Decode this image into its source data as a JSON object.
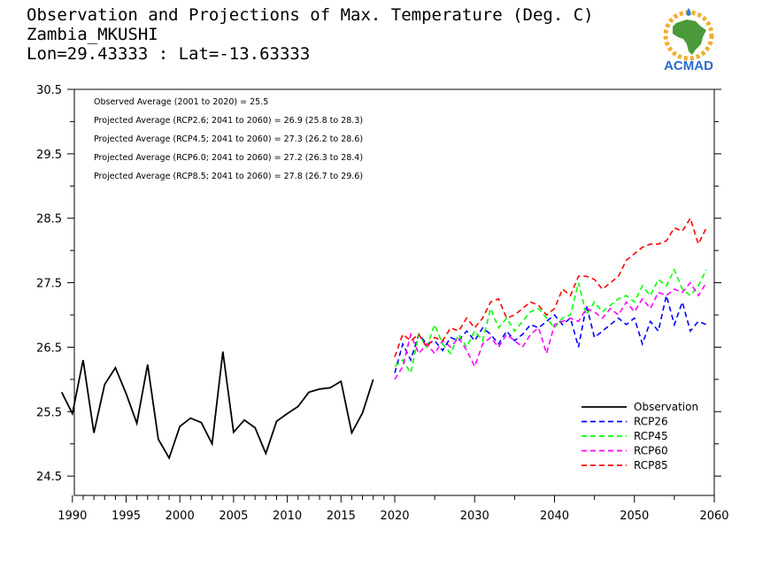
{
  "title": {
    "line1": "Observation and Projections of Max. Temperature (Deg. C)",
    "line2": "Zambia_MKUSHI",
    "line3": "Lon=29.43333 : Lat=-13.63333"
  },
  "logo": {
    "text": "ACMAD",
    "icon": "africa-sun-logo-icon"
  },
  "chart_data": {
    "type": "line",
    "title": "Observation and Projections of Max. Temperature (Deg. C)",
    "xlabel": "",
    "ylabel": "",
    "xlim": [
      1989,
      2060
    ],
    "ylim": [
      24.2,
      30.5
    ],
    "x_ticks": [
      1990,
      1995,
      2000,
      2005,
      2010,
      2015,
      2020,
      2030,
      2040,
      2050,
      2060
    ],
    "y_ticks": [
      24.5,
      25.5,
      26.5,
      27.5,
      28.5,
      29.5,
      30.5
    ],
    "grid": false,
    "legend_position": "bottom-right",
    "annotations": [
      "Observed Average (2001 to 2020) = 25.5",
      "Projected Average (RCP2.6; 2041 to 2060) = 26.9 (25.8 to 28.3)",
      "Projected Average (RCP4.5; 2041 to 2060) = 27.3 (26.2 to 28.6)",
      "Projected Average (RCP6.0; 2041 to 2060) = 27.2 (26.3 to 28.4)",
      "Projected Average (RCP8.5; 2041 to 2060) = 27.8 (26.7 to 29.6)"
    ],
    "series": [
      {
        "name": "Observation",
        "color": "#000000",
        "dash": "solid",
        "x_start": 1989,
        "values": [
          25.8,
          25.47,
          26.3,
          25.17,
          25.92,
          26.18,
          25.78,
          25.32,
          26.23,
          25.07,
          24.78,
          25.27,
          25.4,
          25.33,
          25.0,
          26.43,
          25.18,
          25.37,
          25.25,
          24.85,
          25.35,
          25.47,
          25.58,
          25.8,
          25.85,
          25.87,
          25.97,
          25.17,
          25.48,
          26.0
        ]
      },
      {
        "name": "RCP26",
        "color": "#0000ff",
        "dash": "dashed",
        "x_start": 2020,
        "values": [
          26.1,
          26.55,
          26.3,
          26.7,
          26.55,
          26.6,
          26.45,
          26.65,
          26.6,
          26.75,
          26.6,
          26.8,
          26.7,
          26.55,
          26.75,
          26.6,
          26.7,
          26.85,
          26.8,
          26.9,
          27.0,
          26.85,
          26.95,
          26.5,
          27.15,
          26.65,
          26.75,
          26.85,
          26.95,
          26.85,
          26.95,
          26.55,
          26.9,
          26.75,
          27.3,
          26.85,
          27.2,
          26.75,
          26.9,
          26.85
        ]
      },
      {
        "name": "RCP45",
        "color": "#00ff00",
        "dash": "dashed",
        "x_start": 2020,
        "values": [
          26.2,
          26.3,
          26.1,
          26.7,
          26.5,
          26.85,
          26.55,
          26.4,
          26.7,
          26.5,
          26.75,
          26.6,
          27.1,
          26.8,
          26.95,
          26.75,
          26.9,
          27.05,
          27.1,
          26.95,
          26.8,
          26.95,
          27.0,
          27.5,
          27.0,
          27.2,
          27.05,
          27.15,
          27.25,
          27.3,
          27.2,
          27.45,
          27.3,
          27.55,
          27.45,
          27.7,
          27.4,
          27.3,
          27.45,
          27.7
        ]
      },
      {
        "name": "RCP60",
        "color": "#ff00ff",
        "dash": "dashed",
        "x_start": 2020,
        "values": [
          26.0,
          26.2,
          26.7,
          26.4,
          26.55,
          26.4,
          26.6,
          26.5,
          26.65,
          26.45,
          26.2,
          26.55,
          26.65,
          26.5,
          26.7,
          26.6,
          26.5,
          26.7,
          26.8,
          26.4,
          26.85,
          26.9,
          26.95,
          26.9,
          27.1,
          27.05,
          26.95,
          27.1,
          27.0,
          27.2,
          27.05,
          27.25,
          27.1,
          27.35,
          27.3,
          27.4,
          27.35,
          27.5,
          27.3,
          27.5
        ]
      },
      {
        "name": "RCP85",
        "color": "#ff0000",
        "dash": "dashed",
        "x_start": 2020,
        "values": [
          26.35,
          26.7,
          26.6,
          26.7,
          26.5,
          26.65,
          26.6,
          26.8,
          26.75,
          26.95,
          26.8,
          26.95,
          27.2,
          27.25,
          26.95,
          27.0,
          27.1,
          27.2,
          27.15,
          27.0,
          27.1,
          27.4,
          27.3,
          27.6,
          27.6,
          27.55,
          27.4,
          27.5,
          27.6,
          27.85,
          27.95,
          28.05,
          28.1,
          28.1,
          28.15,
          28.35,
          28.3,
          28.5,
          28.1,
          28.35
        ]
      }
    ]
  }
}
